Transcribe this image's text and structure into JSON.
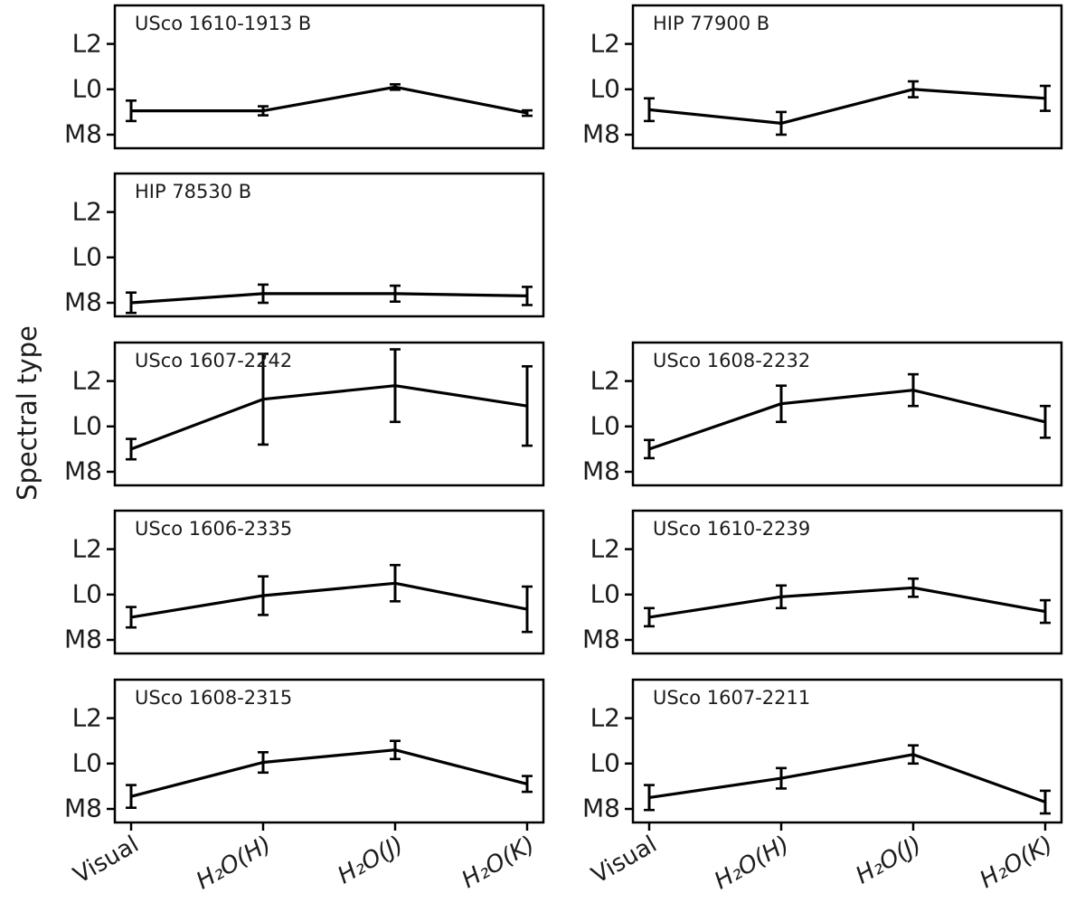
{
  "chart_data": {
    "type": "line",
    "layout": {
      "grid_rows": 5,
      "grid_cols": 2,
      "empty_cells": [
        [
          1,
          1
        ]
      ],
      "shared_x": true,
      "shared_y": true,
      "legend": "none",
      "grid_lines": "off"
    },
    "ylabel": "Spectral type",
    "x_categories": [
      "Visual",
      "H₂O(H)",
      "H₂O(J)",
      "H₂O(K)"
    ],
    "y_ticks": [
      {
        "label": "M8",
        "value": 0
      },
      {
        "label": "L0",
        "value": 2
      },
      {
        "label": "L2",
        "value": 4
      }
    ],
    "y_scale_note": "numeric spectral-type scale: M8=0, M9=1, L0=2, L1=3, L2=4",
    "ylim": [
      -0.6,
      5.7
    ],
    "error_bars": true,
    "colors": {
      "line": "#000000",
      "text": "#1c1c1c",
      "background": "#ffffff"
    },
    "panels": [
      {
        "title": "USco 1610-1913 B",
        "row": 0,
        "col": 0,
        "values": [
          1.05,
          1.05,
          2.1,
          0.95
        ],
        "errors": [
          0.45,
          0.2,
          0.12,
          0.12
        ]
      },
      {
        "title": "HIP 77900 B",
        "row": 0,
        "col": 1,
        "values": [
          1.1,
          0.5,
          2.0,
          1.6
        ],
        "errors": [
          0.5,
          0.5,
          0.35,
          0.55
        ]
      },
      {
        "title": "HIP 78530 B",
        "row": 1,
        "col": 0,
        "values": [
          0.0,
          0.4,
          0.4,
          0.3
        ],
        "errors": [
          0.45,
          0.4,
          0.35,
          0.4
        ]
      },
      {
        "title": "USco 1607-2242",
        "row": 2,
        "col": 0,
        "values": [
          1.0,
          3.2,
          3.8,
          2.9
        ],
        "errors": [
          0.45,
          2.0,
          1.6,
          1.75
        ]
      },
      {
        "title": "USco 1608-2232",
        "row": 2,
        "col": 1,
        "values": [
          1.0,
          3.0,
          3.6,
          2.2
        ],
        "errors": [
          0.4,
          0.8,
          0.7,
          0.7
        ]
      },
      {
        "title": "USco 1606-2335",
        "row": 3,
        "col": 0,
        "values": [
          1.0,
          1.95,
          2.5,
          1.35
        ],
        "errors": [
          0.45,
          0.85,
          0.8,
          1.0
        ]
      },
      {
        "title": "USco 1610-2239",
        "row": 3,
        "col": 1,
        "values": [
          1.0,
          1.9,
          2.3,
          1.25
        ],
        "errors": [
          0.4,
          0.5,
          0.4,
          0.5
        ]
      },
      {
        "title": "USco 1608-2315",
        "row": 4,
        "col": 0,
        "values": [
          0.55,
          2.05,
          2.6,
          1.1
        ],
        "errors": [
          0.5,
          0.45,
          0.4,
          0.35
        ]
      },
      {
        "title": "USco 1607-2211",
        "row": 4,
        "col": 1,
        "values": [
          0.5,
          1.35,
          2.4,
          0.3
        ],
        "errors": [
          0.55,
          0.45,
          0.4,
          0.5
        ]
      }
    ]
  }
}
